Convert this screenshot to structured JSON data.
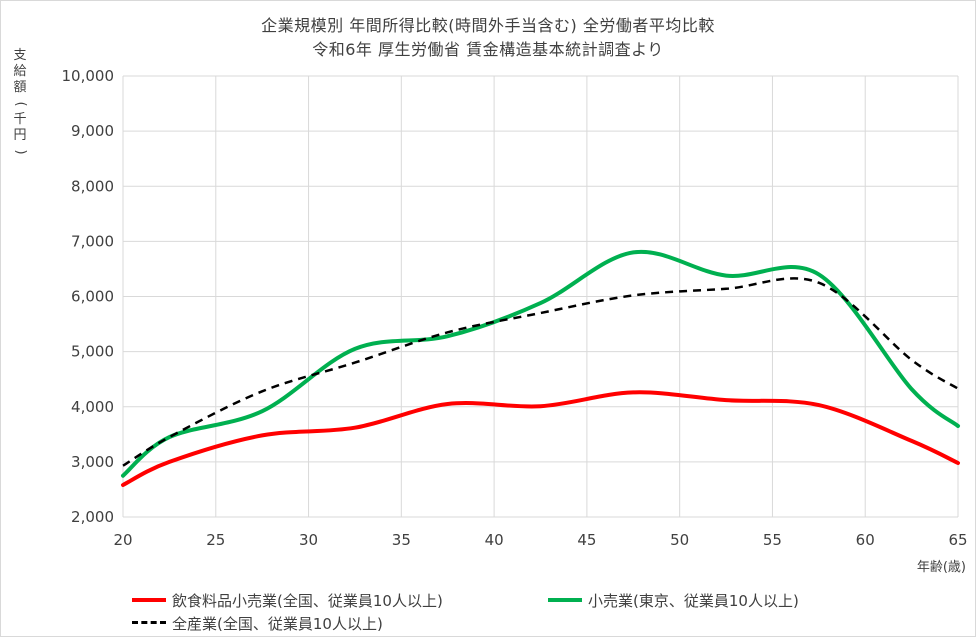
{
  "chart_data": {
    "type": "line",
    "title": "企業規模別  年間所得比較(時間外手当含む)  全労働者平均比較",
    "subtitle": "令和6年  厚生労働省  賃金構造基本統計調査より",
    "ylabel": "支給額(千円)",
    "xlabel": "年齢(歳)",
    "xlim": [
      20,
      65
    ],
    "ylim": [
      2000,
      10000
    ],
    "xticks": [
      "20",
      "25",
      "30",
      "35",
      "40",
      "45",
      "50",
      "55",
      "60",
      "65"
    ],
    "yticks": [
      "2,000",
      "3,000",
      "4,000",
      "5,000",
      "6,000",
      "7,000",
      "8,000",
      "9,000",
      "10,000"
    ],
    "grid": "vertical and horizontal",
    "legend_position": "bottom",
    "series": [
      {
        "name": "飲食料品小売業(全国、従業員10人以上)",
        "color": "#ff0000",
        "style": "solid",
        "x": [
          20,
          22.5,
          27.5,
          32.5,
          37.5,
          42.5,
          47.5,
          52.5,
          57.5,
          62.5,
          65
        ],
        "values": [
          2580,
          3000,
          3480,
          3620,
          4050,
          4010,
          4260,
          4120,
          4030,
          3380,
          2980
        ]
      },
      {
        "name": "小売業(東京、従業員10人以上)",
        "color": "#00b050",
        "style": "solid",
        "x": [
          20,
          22.5,
          27.5,
          32.5,
          37.5,
          42.5,
          47.5,
          52.5,
          57.5,
          62.5,
          65
        ],
        "values": [
          2750,
          3450,
          3920,
          5050,
          5280,
          5880,
          6800,
          6380,
          6400,
          4320,
          3650
        ]
      },
      {
        "name": "全産業(全国、従業員10人以上)",
        "color": "#000000",
        "style": "dashed",
        "x": [
          20,
          22.5,
          27.5,
          32.5,
          37.5,
          42.5,
          47.5,
          52.5,
          57.5,
          62.5,
          65
        ],
        "values": [
          2930,
          3450,
          4280,
          4800,
          5350,
          5700,
          6020,
          6140,
          6250,
          4850,
          4330
        ]
      }
    ]
  }
}
